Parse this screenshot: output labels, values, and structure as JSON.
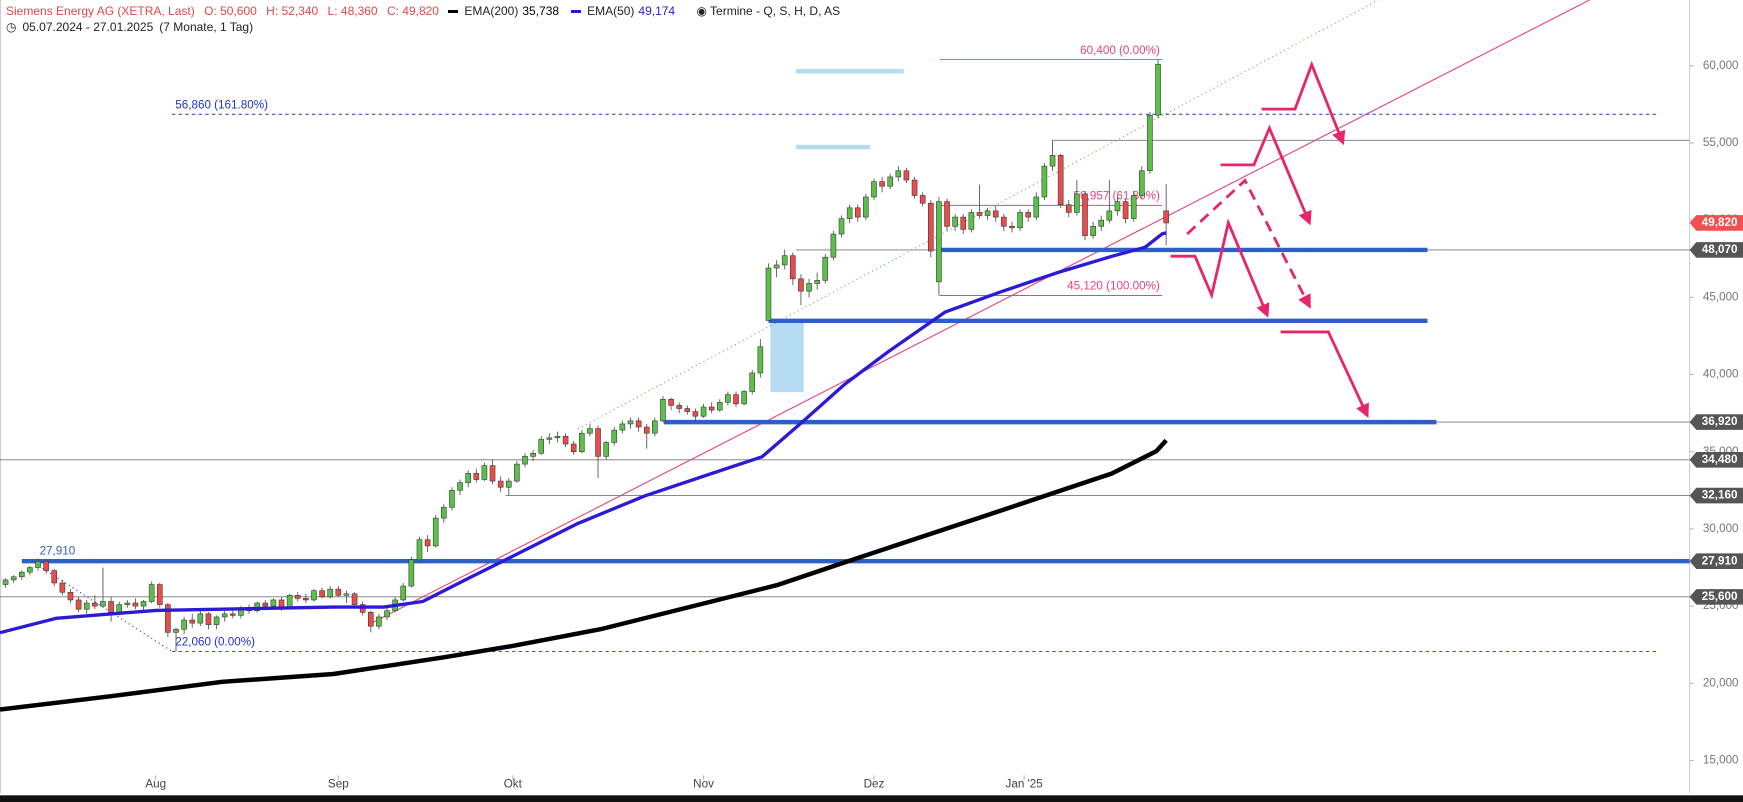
{
  "header": {
    "title": "Siemens Energy AG (XETRA, Last)",
    "ohlc": [
      "O: 50,600",
      "H: 52,340",
      "L: 48,360",
      "C: 49,820"
    ],
    "events": "Termine - Q, S, H, D, AS",
    "range": "05.07.2024 - 27.01.2025",
    "duration": "(7 Monate, 1 Tag)"
  },
  "chart_data": {
    "type": "candlestick",
    "ylim": [
      12890,
      64260
    ],
    "xlim": [
      -0.685,
      207.5
    ],
    "yticks": [
      {
        "value": 15000,
        "label": "15,000"
      },
      {
        "value": 20000,
        "label": "20,000"
      },
      {
        "value": 25000,
        "label": "25,000"
      },
      {
        "value": 30000,
        "label": "30,000"
      },
      {
        "value": 35000,
        "label": "35,000"
      },
      {
        "value": 40000,
        "label": "40,000"
      },
      {
        "value": 45000,
        "label": "45,000"
      },
      {
        "value": 50000,
        "label": "50,000"
      },
      {
        "value": 55000,
        "label": "55,000"
      },
      {
        "value": 60000,
        "label": "60,000"
      }
    ],
    "xticks": [
      {
        "value": 18.5,
        "label": "Aug"
      },
      {
        "value": 41,
        "label": "Sep"
      },
      {
        "value": 62.5,
        "label": "Okt"
      },
      {
        "value": 86,
        "label": "Nov"
      },
      {
        "value": 107,
        "label": "Dez"
      },
      {
        "value": 125.5,
        "label": "Jan '25"
      }
    ],
    "up_color": "#5cbf4a",
    "down_color": "#e84c4c",
    "candles": [
      [
        26400,
        26800,
        26200,
        26700
      ],
      [
        26700,
        27000,
        26500,
        26900
      ],
      [
        26900,
        27300,
        26700,
        27200
      ],
      [
        27200,
        27600,
        27000,
        27500
      ],
      [
        27500,
        28100,
        27300,
        27900
      ],
      [
        27900,
        28000,
        27100,
        27300
      ],
      [
        27300,
        27400,
        26300,
        26500
      ],
      [
        26500,
        26700,
        25700,
        25900
      ],
      [
        25900,
        26100,
        25200,
        25400
      ],
      [
        25400,
        25600,
        24600,
        24800
      ],
      [
        24800,
        25400,
        24500,
        25200
      ],
      [
        25200,
        25700,
        24800,
        25000
      ],
      [
        25000,
        27500,
        24900,
        25300
      ],
      [
        25300,
        25600,
        24000,
        24600
      ],
      [
        24600,
        25300,
        24400,
        25100
      ],
      [
        25100,
        25400,
        24900,
        25200
      ],
      [
        25200,
        25500,
        24800,
        25000
      ],
      [
        25000,
        25400,
        24700,
        25300
      ],
      [
        25300,
        26600,
        25200,
        26400
      ],
      [
        26400,
        26500,
        24900,
        25100
      ],
      [
        25100,
        25200,
        23000,
        23300
      ],
      [
        23300,
        23600,
        22060,
        23500
      ],
      [
        23500,
        24300,
        23200,
        24100
      ],
      [
        24100,
        24500,
        23600,
        23900
      ],
      [
        23900,
        24700,
        23700,
        24500
      ],
      [
        24500,
        24600,
        23500,
        23800
      ],
      [
        23800,
        24400,
        23500,
        24300
      ],
      [
        24300,
        24700,
        24000,
        24500
      ],
      [
        24500,
        24800,
        24200,
        24400
      ],
      [
        24400,
        25000,
        24200,
        24800
      ],
      [
        24800,
        25100,
        24500,
        24700
      ],
      [
        24700,
        25300,
        24600,
        25200
      ],
      [
        25200,
        25400,
        24900,
        25000
      ],
      [
        25000,
        25500,
        24800,
        25400
      ],
      [
        25400,
        25600,
        24700,
        24900
      ],
      [
        24900,
        25800,
        24800,
        25700
      ],
      [
        25700,
        25900,
        25300,
        25500
      ],
      [
        25500,
        25800,
        25200,
        25400
      ],
      [
        25400,
        26100,
        25300,
        26000
      ],
      [
        26000,
        26200,
        25500,
        25600
      ],
      [
        25600,
        26300,
        25500,
        26100
      ],
      [
        26100,
        26300,
        25600,
        25700
      ],
      [
        25700,
        26000,
        25200,
        25800
      ],
      [
        25800,
        25900,
        25000,
        25100
      ],
      [
        25100,
        25300,
        24400,
        24600
      ],
      [
        24600,
        24700,
        23300,
        23700
      ],
      [
        23700,
        24500,
        23500,
        24300
      ],
      [
        24300,
        24900,
        24100,
        24700
      ],
      [
        24700,
        25600,
        24600,
        25400
      ],
      [
        25400,
        26500,
        25300,
        26300
      ],
      [
        26300,
        28200,
        26200,
        28000
      ],
      [
        28000,
        29500,
        27800,
        29300
      ],
      [
        29300,
        29600,
        28500,
        28900
      ],
      [
        28900,
        30900,
        28800,
        30700
      ],
      [
        30700,
        31600,
        30400,
        31400
      ],
      [
        31400,
        32700,
        31200,
        32500
      ],
      [
        32500,
        33200,
        32200,
        33000
      ],
      [
        33000,
        33800,
        32700,
        33600
      ],
      [
        33600,
        33900,
        33000,
        33200
      ],
      [
        33200,
        34300,
        33100,
        34100
      ],
      [
        34100,
        34500,
        32900,
        33100
      ],
      [
        33100,
        33400,
        32400,
        32700
      ],
      [
        32700,
        33300,
        32160,
        33100
      ],
      [
        33100,
        34400,
        33000,
        34200
      ],
      [
        34200,
        34900,
        34000,
        34700
      ],
      [
        34700,
        35100,
        34400,
        34900
      ],
      [
        34900,
        36000,
        34800,
        35800
      ],
      [
        35800,
        36200,
        35500,
        35900
      ],
      [
        35900,
        36300,
        35600,
        36000
      ],
      [
        36000,
        36200,
        35300,
        35500
      ],
      [
        35500,
        35700,
        34800,
        35000
      ],
      [
        35000,
        36400,
        34900,
        36200
      ],
      [
        36200,
        36800,
        36000,
        36500
      ],
      [
        36500,
        36700,
        33300,
        34700
      ],
      [
        34700,
        35700,
        34500,
        35600
      ],
      [
        35600,
        36600,
        35400,
        36400
      ],
      [
        36400,
        37000,
        36200,
        36800
      ],
      [
        36800,
        37200,
        36500,
        37000
      ],
      [
        37000,
        37200,
        36300,
        36600
      ],
      [
        36600,
        36800,
        35200,
        36200
      ],
      [
        36200,
        37200,
        36000,
        37000
      ],
      [
        37000,
        38600,
        36900,
        38400
      ],
      [
        38400,
        38500,
        37700,
        38000
      ],
      [
        38000,
        38200,
        37500,
        37800
      ],
      [
        37800,
        38000,
        37400,
        37600
      ],
      [
        37600,
        37800,
        37000,
        37300
      ],
      [
        37300,
        38100,
        37200,
        37900
      ],
      [
        37900,
        38200,
        37500,
        37700
      ],
      [
        37700,
        38400,
        37600,
        38200
      ],
      [
        38200,
        38900,
        38000,
        38700
      ],
      [
        38700,
        38900,
        37900,
        38100
      ],
      [
        38100,
        39000,
        38000,
        38900
      ],
      [
        38900,
        40300,
        38700,
        40100
      ],
      [
        40100,
        42300,
        39800,
        41800
      ],
      [
        43500,
        47200,
        43480,
        46900
      ],
      [
        46900,
        47400,
        46300,
        47100
      ],
      [
        47100,
        48100,
        46800,
        47700
      ],
      [
        47700,
        47900,
        45800,
        46200
      ],
      [
        46200,
        46500,
        44500,
        45400
      ],
      [
        45400,
        46200,
        45000,
        45900
      ],
      [
        45900,
        46600,
        45500,
        46100
      ],
      [
        46100,
        47800,
        45900,
        47600
      ],
      [
        47600,
        49300,
        47400,
        49100
      ],
      [
        49100,
        50300,
        48900,
        50100
      ],
      [
        50100,
        51000,
        49800,
        50800
      ],
      [
        50800,
        51000,
        49900,
        50200
      ],
      [
        50200,
        51700,
        50000,
        51500
      ],
      [
        51500,
        52700,
        51300,
        52500
      ],
      [
        52500,
        52800,
        51800,
        52200
      ],
      [
        52200,
        53000,
        52000,
        52800
      ],
      [
        52800,
        53500,
        52500,
        53200
      ],
      [
        53200,
        53400,
        52400,
        52600
      ],
      [
        52600,
        52800,
        51400,
        51600
      ],
      [
        51600,
        51800,
        50900,
        51100
      ],
      [
        51100,
        51300,
        47600,
        48000
      ],
      [
        46000,
        51500,
        45120,
        51200
      ],
      [
        51200,
        51400,
        49300,
        49600
      ],
      [
        49600,
        50400,
        49300,
        50200
      ],
      [
        50200,
        50400,
        49100,
        49400
      ],
      [
        49400,
        50700,
        49200,
        50500
      ],
      [
        50500,
        52300,
        50100,
        50300
      ],
      [
        50300,
        50800,
        50000,
        50600
      ],
      [
        50600,
        50900,
        49900,
        50200
      ],
      [
        50200,
        50400,
        49300,
        49600
      ],
      [
        49600,
        49900,
        49200,
        49500
      ],
      [
        49500,
        50700,
        49300,
        50500
      ],
      [
        50500,
        50700,
        49900,
        50200
      ],
      [
        50200,
        51800,
        50000,
        51500
      ],
      [
        51500,
        53700,
        51300,
        53500
      ],
      [
        53500,
        55200,
        53200,
        54200
      ],
      [
        54200,
        54300,
        50800,
        51000
      ],
      [
        51000,
        51300,
        50200,
        50500
      ],
      [
        50500,
        52600,
        50300,
        51700
      ],
      [
        51700,
        51900,
        48700,
        49000
      ],
      [
        49000,
        49900,
        48800,
        49600
      ],
      [
        49600,
        50300,
        49300,
        50000
      ],
      [
        50000,
        52600,
        49800,
        50600
      ],
      [
        50600,
        51500,
        50300,
        51200
      ],
      [
        51200,
        51400,
        49800,
        50100
      ],
      [
        50100,
        51900,
        49900,
        51600
      ],
      [
        51600,
        53500,
        51400,
        53200
      ],
      [
        53200,
        57000,
        53000,
        56800
      ],
      [
        56800,
        60400,
        56600,
        60100
      ],
      [
        50600,
        52340,
        48360,
        49820
      ]
    ],
    "series": [
      {
        "name": "EMA(200)",
        "color": "#000000",
        "width": 4,
        "last_label": "35,738",
        "x": [
          -0.685,
          13,
          26.7,
          40.4,
          54.1,
          62.3,
          73.3,
          87,
          95.2,
          103.4,
          111.6,
          119.9,
          128.1,
          136.3,
          141.8,
          143
        ],
        "values": [
          18300,
          19170,
          20100,
          20600,
          21690,
          22410,
          23500,
          25300,
          26380,
          27830,
          29270,
          30710,
          32150,
          33590,
          35040,
          35738
        ]
      },
      {
        "name": "EMA(50)",
        "color": "#2b1ad6",
        "width": 3,
        "last_label": "49,174",
        "x": [
          -0.685,
          6.2,
          18.5,
          40.4,
          46.6,
          51.4,
          56.8,
          62.3,
          70.5,
          78.8,
          87,
          93.2,
          98,
          103.4,
          108.9,
          115.8,
          122.6,
          129.5,
          136.3,
          140.4,
          142.5,
          143
        ],
        "values": [
          23280,
          24210,
          24720,
          24940,
          24940,
          25300,
          26740,
          28180,
          30350,
          32150,
          33590,
          34670,
          36840,
          39370,
          41530,
          44060,
          45350,
          46580,
          47660,
          48240,
          49110,
          49174
        ]
      }
    ],
    "levels": [
      {
        "value": 49820,
        "label": "49,820",
        "color": "#f05050"
      },
      {
        "value": 48070,
        "label": "48,070",
        "color": "#555555",
        "from": 97.4
      },
      {
        "value": 36920,
        "label": "36,920",
        "color": "#555555",
        "from": 81.1
      },
      {
        "value": 34480,
        "label": "34,480",
        "color": "#555555",
        "from": -0.685
      },
      {
        "value": 32160,
        "label": "32,160",
        "color": "#555555",
        "from": 61.6
      },
      {
        "value": 27910,
        "label": "27,910",
        "color": "#555555"
      },
      {
        "value": 25600,
        "label": "25,600",
        "color": "#555555",
        "from": -0.685
      },
      {
        "value": 55170,
        "color": "#555555",
        "from": 129
      }
    ],
    "zones": [
      {
        "value": 48070,
        "from": 115.1,
        "to": 175.2
      },
      {
        "value": 43480,
        "from": 94,
        "to": 175.2
      },
      {
        "value": 36920,
        "from": 81.1,
        "to": 176.3
      },
      {
        "value": 27910,
        "from": 2,
        "to": 207.5,
        "label": "27,910"
      }
    ],
    "zone_color": "#2d5fc8",
    "fib": [
      {
        "value": 56860,
        "label": "56,860 (161.80%)",
        "from": 20.5,
        "to": 203.4,
        "color": "#2233cc",
        "dashed": true
      },
      {
        "value": 22060,
        "label": "22,060 (0.00%)",
        "from": 20.5,
        "to": 203.4,
        "color": "#2233cc",
        "dashed": true
      },
      {
        "value": 60400,
        "label": "60,400 (0.00%)",
        "from": 115.1,
        "to": 142.5,
        "color": "#e8457a",
        "dashed": false
      },
      {
        "value": 50957,
        "label": "50,957 (61.80%)",
        "from": 115.1,
        "to": 142.5,
        "color": "#e8457a",
        "dashed": false
      },
      {
        "value": 45120,
        "label": "45,120 (100.00%)",
        "from": 115.1,
        "to": 142.5,
        "color": "#e8457a",
        "dashed": false
      }
    ]
  }
}
